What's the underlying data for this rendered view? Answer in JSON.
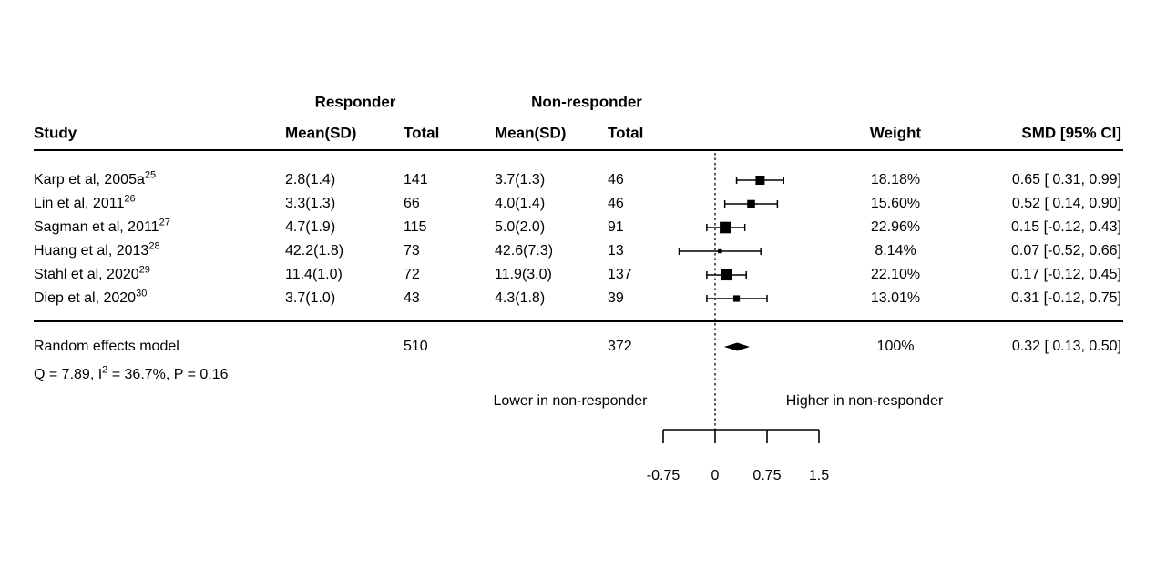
{
  "header": {
    "group_responder": "Responder",
    "group_nonresponder": "Non-responder",
    "study": "Study",
    "mean_sd_responder": "Mean(SD)",
    "total_responder": "Total",
    "mean_sd_nonresponder": "Mean(SD)",
    "total_nonresponder": "Total",
    "weight": "Weight",
    "smd_ci": "SMD [95% CI]"
  },
  "chart_data": {
    "type": "forest",
    "x_axis": {
      "ticks": [
        -0.75,
        0,
        0.75,
        1.5
      ],
      "tick_labels": [
        "-0.75",
        "0",
        "0.75",
        "1.5"
      ],
      "range": [
        -0.75,
        1.5
      ],
      "reference_line": 0,
      "label_left": "Lower in non-responder",
      "label_right": "Higher in non-responder"
    },
    "studies": [
      {
        "label": "Karp et al, 2005a",
        "superscript": "25",
        "responder_mean_sd": "2.8(1.4)",
        "responder_total": "141",
        "nonresponder_mean_sd": "3.7(1.3)",
        "nonresponder_total": "46",
        "weight": "18.18%",
        "weight_value": 18.18,
        "smd": 0.65,
        "ci_low": 0.31,
        "ci_high": 0.99,
        "smd_ci_label": "0.65 [ 0.31, 0.99]"
      },
      {
        "label": "Lin et al, 2011",
        "superscript": "26",
        "responder_mean_sd": "3.3(1.3)",
        "responder_total": "66",
        "nonresponder_mean_sd": "4.0(1.4)",
        "nonresponder_total": "46",
        "weight": "15.60%",
        "weight_value": 15.6,
        "smd": 0.52,
        "ci_low": 0.14,
        "ci_high": 0.9,
        "smd_ci_label": "0.52 [ 0.14, 0.90]"
      },
      {
        "label": "Sagman et al, 2011",
        "superscript": "27",
        "responder_mean_sd": "4.7(1.9)",
        "responder_total": "115",
        "nonresponder_mean_sd": "5.0(2.0)",
        "nonresponder_total": "91",
        "weight": "22.96%",
        "weight_value": 22.96,
        "smd": 0.15,
        "ci_low": -0.12,
        "ci_high": 0.43,
        "smd_ci_label": "0.15 [-0.12, 0.43]"
      },
      {
        "label": "Huang et al, 2013",
        "superscript": "28",
        "responder_mean_sd": "42.2(1.8)",
        "responder_total": "73",
        "nonresponder_mean_sd": "42.6(7.3)",
        "nonresponder_total": "13",
        "weight": "8.14%",
        "weight_value": 8.14,
        "smd": 0.07,
        "ci_low": -0.52,
        "ci_high": 0.66,
        "smd_ci_label": "0.07 [-0.52, 0.66]"
      },
      {
        "label": "Stahl et al, 2020",
        "superscript": "29",
        "responder_mean_sd": "11.4(1.0)",
        "responder_total": "72",
        "nonresponder_mean_sd": "11.9(3.0)",
        "nonresponder_total": "137",
        "weight": "22.10%",
        "weight_value": 22.1,
        "smd": 0.17,
        "ci_low": -0.12,
        "ci_high": 0.45,
        "smd_ci_label": "0.17 [-0.12, 0.45]"
      },
      {
        "label": "Diep et al, 2020",
        "superscript": "30",
        "responder_mean_sd": "3.7(1.0)",
        "responder_total": "43",
        "nonresponder_mean_sd": "4.3(1.8)",
        "nonresponder_total": "39",
        "weight": "13.01%",
        "weight_value": 13.01,
        "smd": 0.31,
        "ci_low": -0.12,
        "ci_high": 0.75,
        "smd_ci_label": "0.31 [-0.12, 0.75]"
      }
    ],
    "summary": {
      "label": "Random effects model",
      "responder_total": "510",
      "nonresponder_total": "372",
      "weight": "100%",
      "smd": 0.32,
      "ci_low": 0.13,
      "ci_high": 0.5,
      "smd_ci_label": "0.32 [ 0.13, 0.50]",
      "heterogeneity": {
        "prefix": "Q = 7.89, I",
        "superscript": "2",
        "suffix": " = 36.7%, P = 0.16"
      }
    }
  },
  "colors": {
    "foreground": "#000000",
    "background": "#ffffff"
  }
}
